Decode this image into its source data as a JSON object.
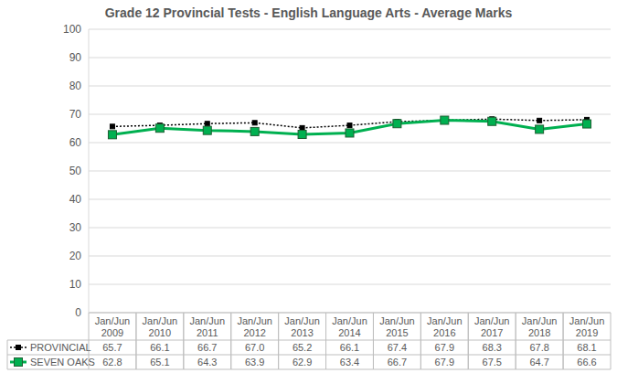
{
  "chart_data": {
    "type": "line",
    "title": "Grade 12 Provincial Tests - English Language Arts - Average Marks",
    "categories": [
      "Jan/Jun 2009",
      "Jan/Jun 2010",
      "Jan/Jun 2011",
      "Jan/Jun 2012",
      "Jan/Jun 2013",
      "Jan/Jun 2014",
      "Jan/Jun 2015",
      "Jan/Jun 2016",
      "Jan/Jun 2017",
      "Jan/Jun 2018",
      "Jan/Jun 2019"
    ],
    "series": [
      {
        "name": "PROVINCIAL",
        "color": "#000000",
        "marker": "square",
        "line_style": "dotted",
        "values": [
          65.7,
          66.1,
          66.7,
          67.0,
          65.2,
          66.1,
          67.4,
          67.9,
          68.3,
          67.8,
          68.1
        ],
        "value_labels": [
          "65.7",
          "66.1",
          "66.7",
          "67.0",
          "65.2",
          "66.1",
          "67.4",
          "67.9",
          "68.3",
          "67.8",
          "68.1"
        ]
      },
      {
        "name": "SEVEN OAKS",
        "color": "#00b050",
        "marker": "square",
        "line_style": "solid",
        "values": [
          62.8,
          65.1,
          64.3,
          63.9,
          62.9,
          63.4,
          66.7,
          67.9,
          67.5,
          64.7,
          66.6
        ],
        "value_labels": [
          "62.8",
          "65.1",
          "64.3",
          "63.9",
          "62.9",
          "63.4",
          "66.7",
          "67.9",
          "67.5",
          "64.7",
          "66.6"
        ]
      }
    ],
    "ylim": [
      0,
      100
    ],
    "yticks": [
      0,
      10,
      20,
      30,
      40,
      50,
      60,
      70,
      80,
      90,
      100
    ],
    "grid": true
  }
}
